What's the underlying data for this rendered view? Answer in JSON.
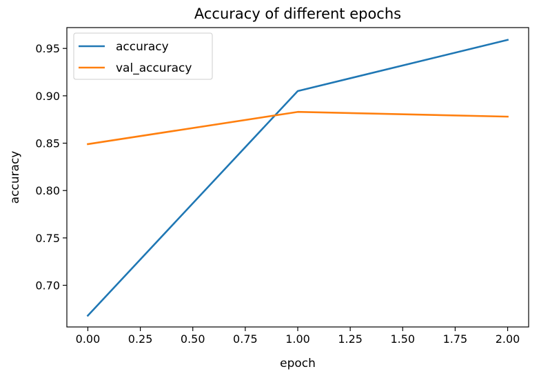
{
  "chart_data": {
    "type": "line",
    "title": "Accuracy of different epochs",
    "xlabel": "epoch",
    "ylabel": "accuracy",
    "x": [
      0.0,
      1.0,
      2.0
    ],
    "xlim": [
      -0.1,
      2.1
    ],
    "ylim": [
      0.656,
      0.972
    ],
    "xticks": [
      0.0,
      0.25,
      0.5,
      0.75,
      1.0,
      1.25,
      1.5,
      1.75,
      2.0
    ],
    "xtick_labels": [
      "0.00",
      "0.25",
      "0.50",
      "0.75",
      "1.00",
      "1.25",
      "1.50",
      "1.75",
      "2.00"
    ],
    "yticks": [
      0.7,
      0.75,
      0.8,
      0.85,
      0.9,
      0.95
    ],
    "ytick_labels": [
      "0.70",
      "0.75",
      "0.80",
      "0.85",
      "0.90",
      "0.95"
    ],
    "grid": false,
    "legend_position": "top-left",
    "series": [
      {
        "name": "accuracy",
        "color": "#1f77b4",
        "values": [
          0.668,
          0.905,
          0.959
        ]
      },
      {
        "name": "val_accuracy",
        "color": "#ff7f0e",
        "values": [
          0.849,
          0.883,
          0.878
        ]
      }
    ]
  }
}
